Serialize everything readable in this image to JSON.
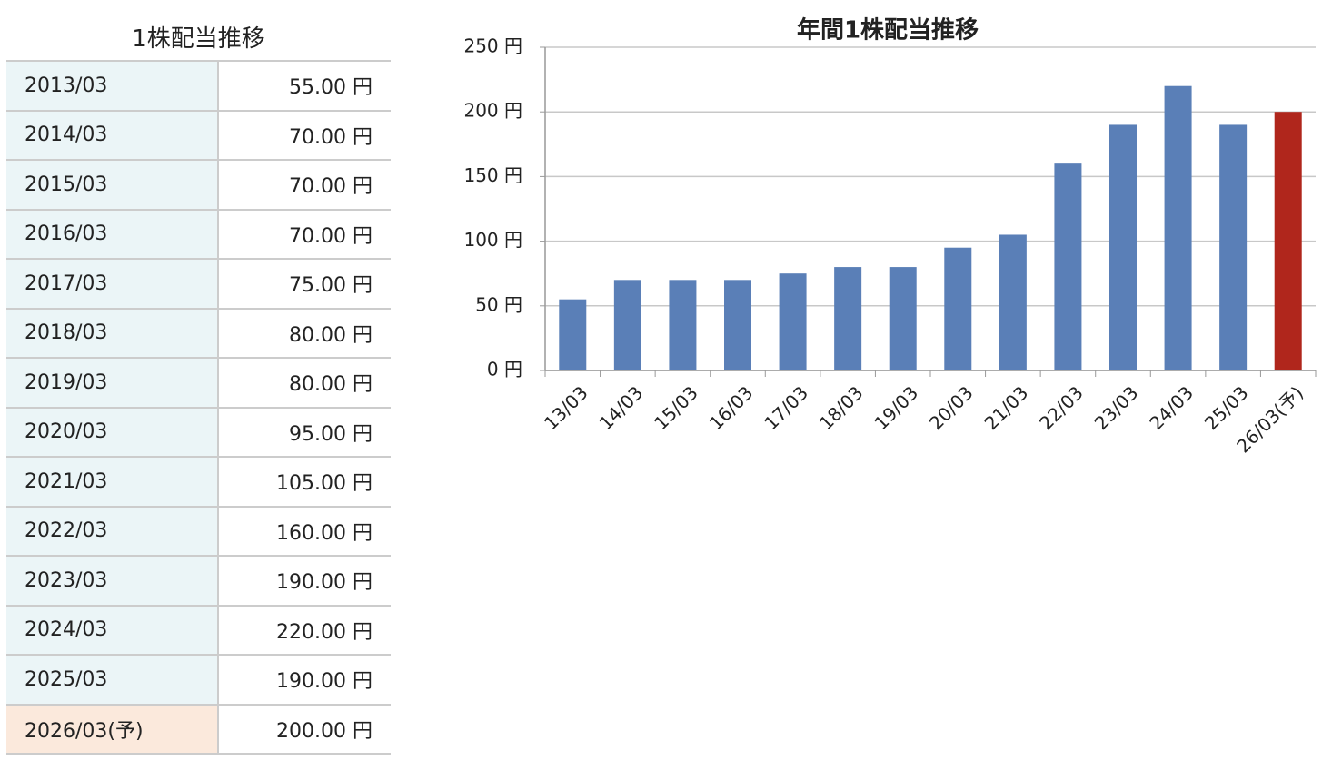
{
  "table": {
    "title": "1株配当推移",
    "rows": [
      [
        "2013/03",
        "55.00 円"
      ],
      [
        "2014/03",
        "70.00 円"
      ],
      [
        "2015/03",
        "70.00 円"
      ],
      [
        "2016/03",
        "70.00 円"
      ],
      [
        "2017/03",
        "75.00 円"
      ],
      [
        "2018/03",
        "80.00 円"
      ],
      [
        "2019/03",
        "80.00 円"
      ],
      [
        "2020/03",
        "95.00 円"
      ],
      [
        "2021/03",
        "105.00 円"
      ],
      [
        "2022/03",
        "160.00 円"
      ],
      [
        "2023/03",
        "190.00 円"
      ],
      [
        "2024/03",
        "220.00 円"
      ],
      [
        "2025/03",
        "190.00 円"
      ],
      [
        "2026/03(予)",
        "200.00 円"
      ]
    ]
  },
  "chart_data": {
    "type": "bar",
    "title": "年間1株配当推移",
    "categories": [
      "13/03",
      "14/03",
      "15/03",
      "16/03",
      "17/03",
      "18/03",
      "19/03",
      "20/03",
      "21/03",
      "22/03",
      "23/03",
      "24/03",
      "25/03",
      "26/03(予)"
    ],
    "values": [
      55,
      70,
      70,
      70,
      75,
      80,
      80,
      95,
      105,
      160,
      190,
      220,
      190,
      200
    ],
    "colors": [
      "#5a7fb7",
      "#5a7fb7",
      "#5a7fb7",
      "#5a7fb7",
      "#5a7fb7",
      "#5a7fb7",
      "#5a7fb7",
      "#5a7fb7",
      "#5a7fb7",
      "#5a7fb7",
      "#5a7fb7",
      "#5a7fb7",
      "#5a7fb7",
      "#b0261c"
    ],
    "ylim": [
      0,
      250
    ],
    "yticks": [
      {
        "value": 0,
        "label": "0 円"
      },
      {
        "value": 50,
        "label": "50 円"
      },
      {
        "value": 100,
        "label": "100 円"
      },
      {
        "value": 150,
        "label": "150 円"
      },
      {
        "value": 200,
        "label": "200 円"
      },
      {
        "value": 250,
        "label": "250 円"
      }
    ],
    "grid": true
  }
}
